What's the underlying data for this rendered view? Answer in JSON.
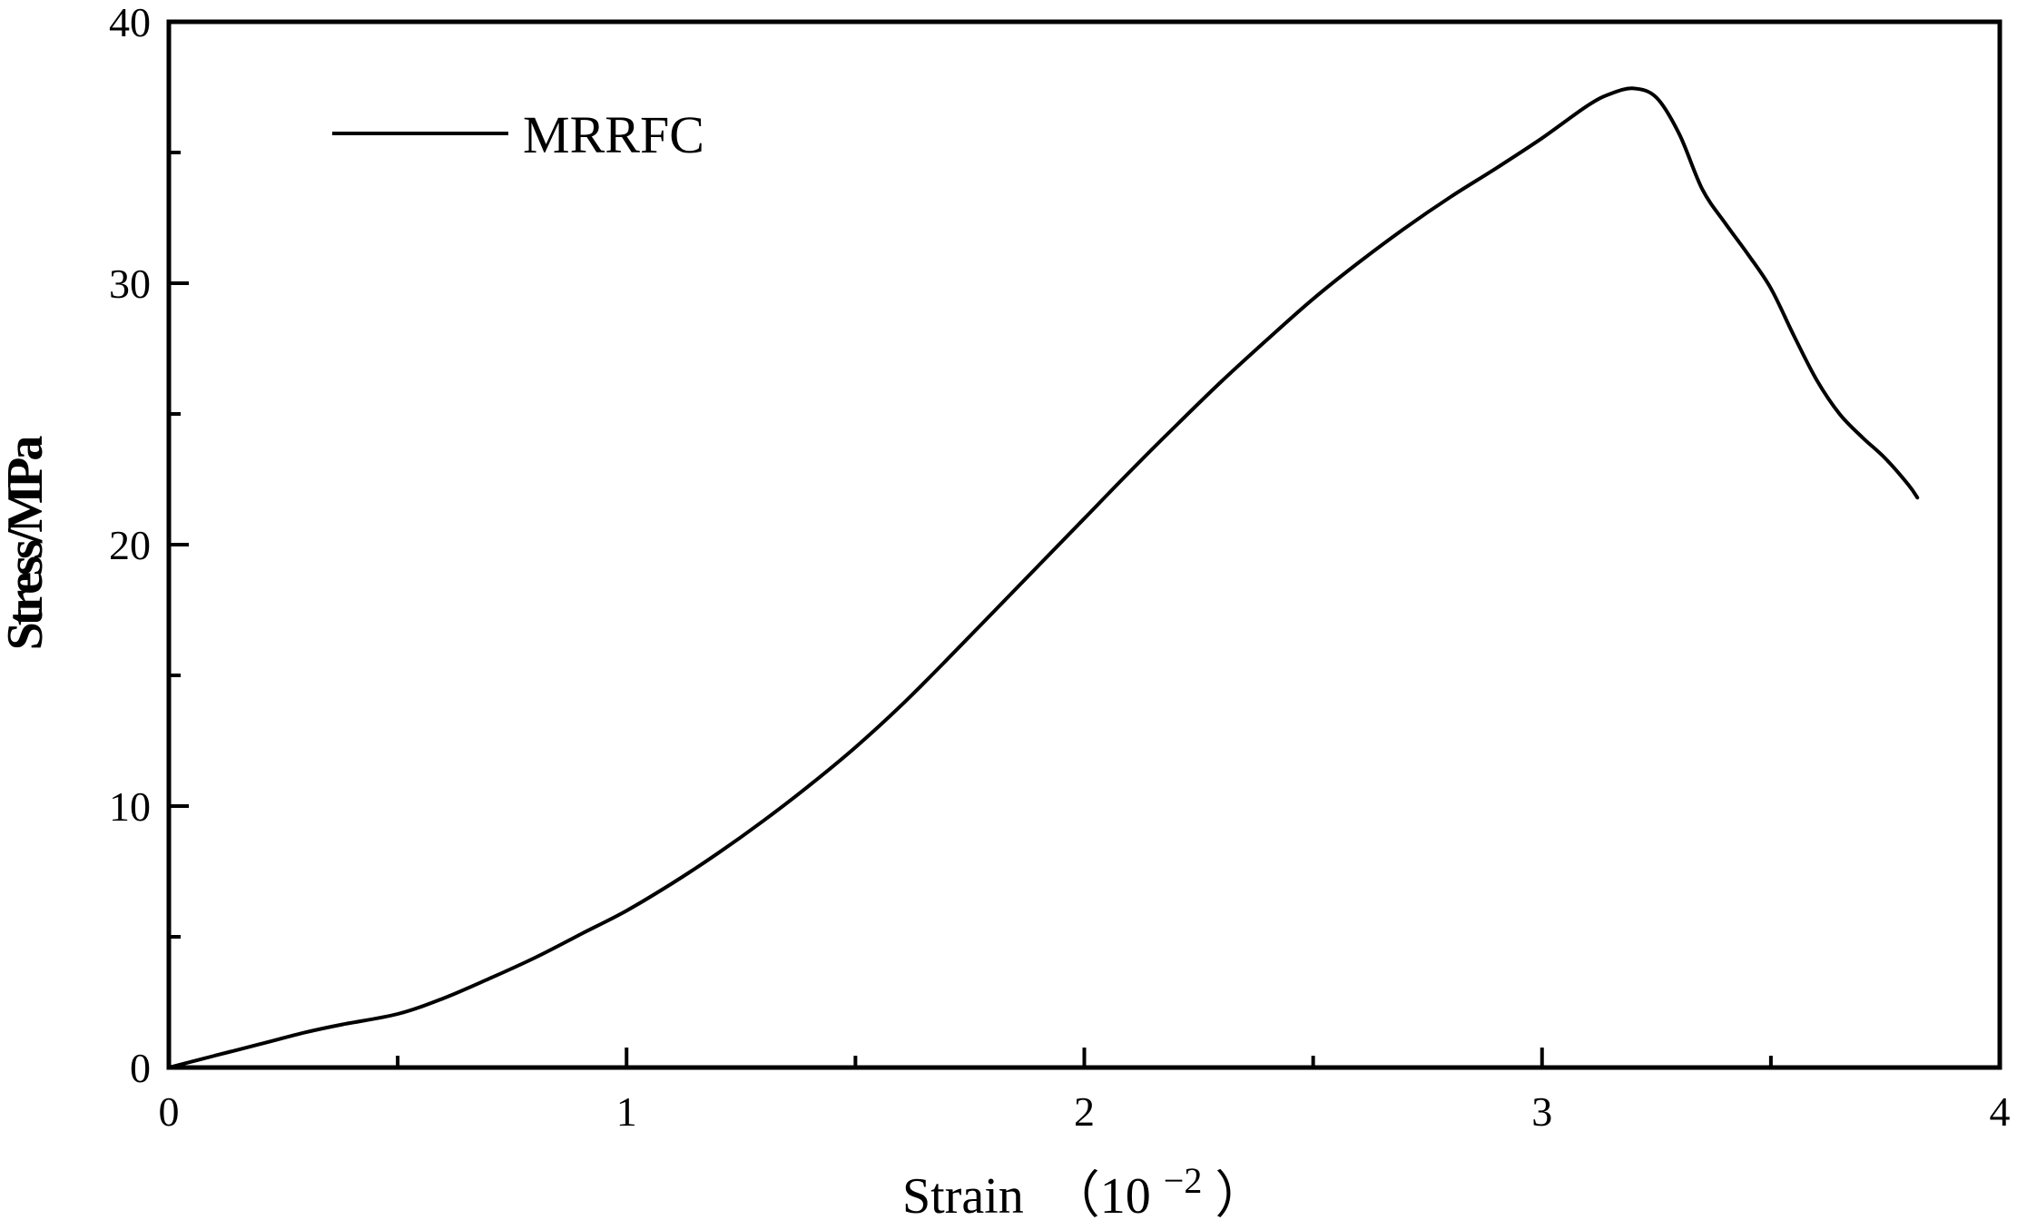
{
  "chart_data": {
    "type": "line",
    "title": "",
    "xlabel": "Strain",
    "xlabel_unit": "（10",
    "xlabel_exponent": "−2",
    "xlabel_close": "）",
    "ylabel": "Stress/MPa",
    "xlim": [
      0,
      4
    ],
    "ylim": [
      0,
      40
    ],
    "x_ticks": [
      0,
      1,
      2,
      3,
      4
    ],
    "x_tick_labels": [
      "0",
      "1",
      "2",
      "3",
      "4"
    ],
    "y_ticks": [
      0,
      10,
      20,
      30,
      40
    ],
    "y_tick_labels": [
      "0",
      "10",
      "20",
      "30",
      "40"
    ],
    "x_minor_ticks": [
      0.5,
      1.5,
      2.5,
      3.5
    ],
    "y_minor_ticks": [
      5,
      15,
      25,
      35
    ],
    "grid": false,
    "legend_position": "top-left",
    "line_color": "#000000",
    "series": [
      {
        "name": "MRRFC",
        "x": [
          0,
          0.1,
          0.2,
          0.3,
          0.38,
          0.5,
          0.6,
          0.7,
          0.8,
          0.9,
          1.0,
          1.1,
          1.2,
          1.3,
          1.4,
          1.5,
          1.6,
          1.7,
          1.8,
          1.9,
          2.0,
          2.1,
          2.2,
          2.3,
          2.4,
          2.5,
          2.6,
          2.7,
          2.8,
          2.9,
          3.0,
          3.1,
          3.15,
          3.2,
          3.25,
          3.3,
          3.35,
          3.4,
          3.45,
          3.5,
          3.55,
          3.6,
          3.65,
          3.7,
          3.75,
          3.8,
          3.82
        ],
        "y": [
          0,
          0.45,
          0.9,
          1.35,
          1.65,
          2.05,
          2.65,
          3.4,
          4.2,
          5.1,
          6.0,
          7.05,
          8.2,
          9.45,
          10.8,
          12.25,
          13.85,
          15.6,
          17.4,
          19.2,
          21.0,
          22.8,
          24.55,
          26.25,
          27.85,
          29.4,
          30.8,
          32.1,
          33.3,
          34.4,
          35.55,
          36.8,
          37.25,
          37.45,
          37.1,
          35.7,
          33.6,
          32.3,
          31.1,
          29.8,
          28.0,
          26.3,
          25.0,
          24.1,
          23.3,
          22.3,
          21.8
        ]
      }
    ]
  }
}
